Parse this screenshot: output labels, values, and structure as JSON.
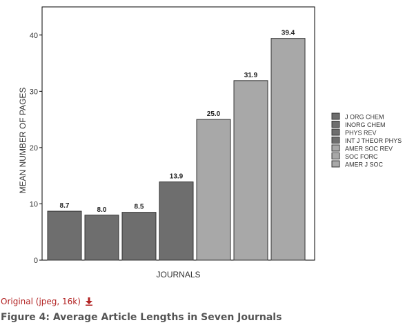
{
  "chart_data": {
    "type": "bar",
    "categories": [
      "J ORG CHEM",
      "INORG CHEM",
      "PHYS REV",
      "INT J THEOR PHYS",
      "AMER SOC REV",
      "SOC FORC",
      "AMER J SOC"
    ],
    "values": [
      8.7,
      8.0,
      8.5,
      13.9,
      25.0,
      31.9,
      39.4
    ],
    "value_labels": [
      "8.7",
      "8.0",
      "8.5",
      "13.9",
      "25.0",
      "31.9",
      "39.4"
    ],
    "bar_colors": [
      "#6e6e6e",
      "#6e6e6e",
      "#6e6e6e",
      "#6e6e6e",
      "#a8a8a8",
      "#a8a8a8",
      "#a8a8a8"
    ],
    "title": "",
    "xlabel": "JOURNALS",
    "ylabel": "MEAN NUMBER OF PAGES",
    "ylim": [
      0,
      45
    ],
    "yticks": [
      0,
      10,
      20,
      30,
      40
    ],
    "legend": {
      "position": "right",
      "entries": [
        "J ORG CHEM",
        "INORG CHEM",
        "PHYS REV",
        "INT J THEOR PHYS",
        "AMER SOC REV",
        "SOC FORC",
        "AMER J SOC"
      ]
    },
    "grid": false
  },
  "link": {
    "label": "Original (jpeg, 16k)",
    "icon": "download-arrow-icon",
    "color": "#b22222"
  },
  "caption": "Figure 4: Average Article Lengths in Seven Journals"
}
